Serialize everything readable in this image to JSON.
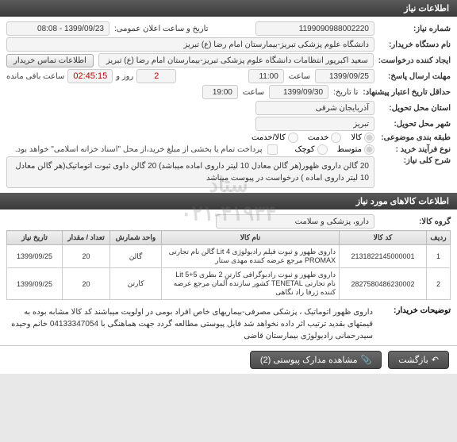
{
  "watermark": {
    "line1": "ستاد",
    "line2": "۰۲۱-۴۱۹۳۴"
  },
  "sections": {
    "info": "اطلاعات نیاز",
    "items": "اطلاعات کالاهای مورد نیاز"
  },
  "labels": {
    "need_no": "شماره نیاز:",
    "announce_date": "تاریخ و ساعت اعلان عمومی:",
    "buyer_org": "نام دستگاه خریدار:",
    "creator": "ایجاد کننده درخواست:",
    "contact_btn": "اطلاعات تماس خریدار",
    "deadline": "مهلت ارسال پاسخ:",
    "deadline_hour": "ساعت",
    "remaining": "ساعت باقی مانده",
    "day": "روز و",
    "validity": "حداقل تاریخ اعتبار پیشنهاد:",
    "to_date": "تا تاریخ:",
    "delivery_province": "استان محل تحویل:",
    "delivery_city": "شهر محل تحویل:",
    "budget_type": "طبقه بندی موضوعی:",
    "process_type": "نوع فرآیند خرید :",
    "process_note": "پرداخت تمام یا بخشی از مبلغ خرید،از محل \"اسناد خزانه اسلامی\" خواهد بود.",
    "general_desc": "شرح کلی نیاز:",
    "item_group": "گروه کالا:",
    "buyer_notes": "توضیحات خریدار:",
    "view_attachments": "مشاهده مدارک پیوستی (2)",
    "back": "بازگشت"
  },
  "values": {
    "need_no": "1199090988002220",
    "announce_date": "1399/09/23 - 08:08",
    "buyer_org": "دانشگاه علوم پزشکی تبریز-بیمارستان امام رضا (ع) تبریز",
    "creator": "سعید اکبرپور انتظامات دانشگاه علوم پزشکی تبریز-بیمارستان امام رضا (ع) تبریز",
    "deadline_date": "1399/09/25",
    "deadline_time": "11:00",
    "remain_days": "2",
    "remain_time": "02:45:15",
    "validity_date": "1399/09/30",
    "validity_time": "19:00",
    "province": "آذربایجان شرقی",
    "city": "تبریز",
    "general_desc": "20 گالن  داروی ظهور(هر گالن معادل 10 لیتر داروی اماده میباشد) 20 گالن داوی ثبوت اتوماتیک(هر گالن معادل 10 لیتر داروی اماده ) درخواست در پیوست میباشد",
    "item_group": "دارو، پزشکی و سلامت",
    "buyer_notes": "داروی ظهور اتوماتیک ، پزشکی مصرفی-بیماریهای خاص افراد بومی در اولویت میباشند کد کالا مشابه بوده به قیمتهای بقدید ترتیب اثر داده نخواهد شد فایل پیوستی مطالعه گردد جهت هماهنگی با 04133347054 خانم وحیده  سیدرحمانی رادیولوژی بیمارستان قاضی"
  },
  "budget_radios": {
    "goods": "کالا",
    "service": "خدمت",
    "both": "کالا/خدمت"
  },
  "process_radios": {
    "open": "متوسط",
    "limited": "کوچک"
  },
  "table": {
    "headers": {
      "row": "ردیف",
      "code": "کد کالا",
      "name": "نام کالا",
      "unit": "واحد شمارش",
      "qty": "تعداد / مقدار",
      "date": "تاریخ نیاز"
    },
    "rows": [
      {
        "row": "1",
        "code": "2131822145000001",
        "name": "داروی ظهور و ثبوت فیلم رادیولوژی 4 Lit گالن نام تجارتی PROMAX مرجع عرضه کننده مهدی ستار",
        "unit": "گالن",
        "qty": "20",
        "date": "1399/09/25"
      },
      {
        "row": "2",
        "code": "2827580486230002",
        "name": "داروی ظهور و ثبوت رادیوگرافی کارتن 2 بطری 5+5 Lit نام تجارتی TENETAL کشور سازنده آلمان مرجع عرضه کننده ژرفا راد نگاهی",
        "unit": "کارتن",
        "qty": "20",
        "date": "1399/09/25"
      }
    ]
  }
}
